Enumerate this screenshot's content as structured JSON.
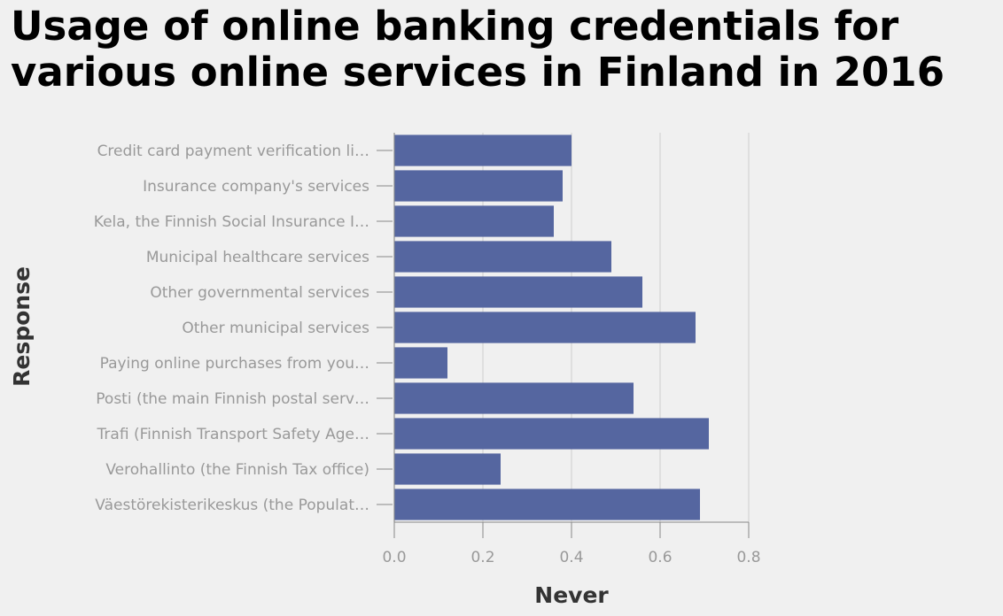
{
  "title_lines": [
    "Usage of online banking credentials for",
    "various online services in Finland in 2016"
  ],
  "chart_data": {
    "type": "bar",
    "orientation": "horizontal",
    "title": "Usage of online banking credentials for various online services in Finland in 2016",
    "xlabel": "Never",
    "ylabel": "Response",
    "xlim": [
      0,
      0.8
    ],
    "xticks": [
      0.0,
      0.2,
      0.4,
      0.6,
      0.8
    ],
    "xtick_labels": [
      "0.0",
      "0.2",
      "0.4",
      "0.6",
      "0.8"
    ],
    "grid": true,
    "bar_color": "#5566a0",
    "categories": [
      "Credit card payment verification li…",
      "Insurance company's services",
      "Kela, the Finnish Social Insurance I…",
      "Municipal healthcare services",
      "Other governmental services",
      "Other municipal services",
      "Paying online purchases from you…",
      "Posti (the main Finnish postal serv…",
      "Trafi (Finnish Transport Safety Age…",
      "Verohallinto (the Finnish Tax office)",
      "Väestörekisterikeskus (the Populat…"
    ],
    "values": [
      0.4,
      0.38,
      0.36,
      0.49,
      0.56,
      0.68,
      0.12,
      0.54,
      0.71,
      0.24,
      0.69
    ]
  }
}
